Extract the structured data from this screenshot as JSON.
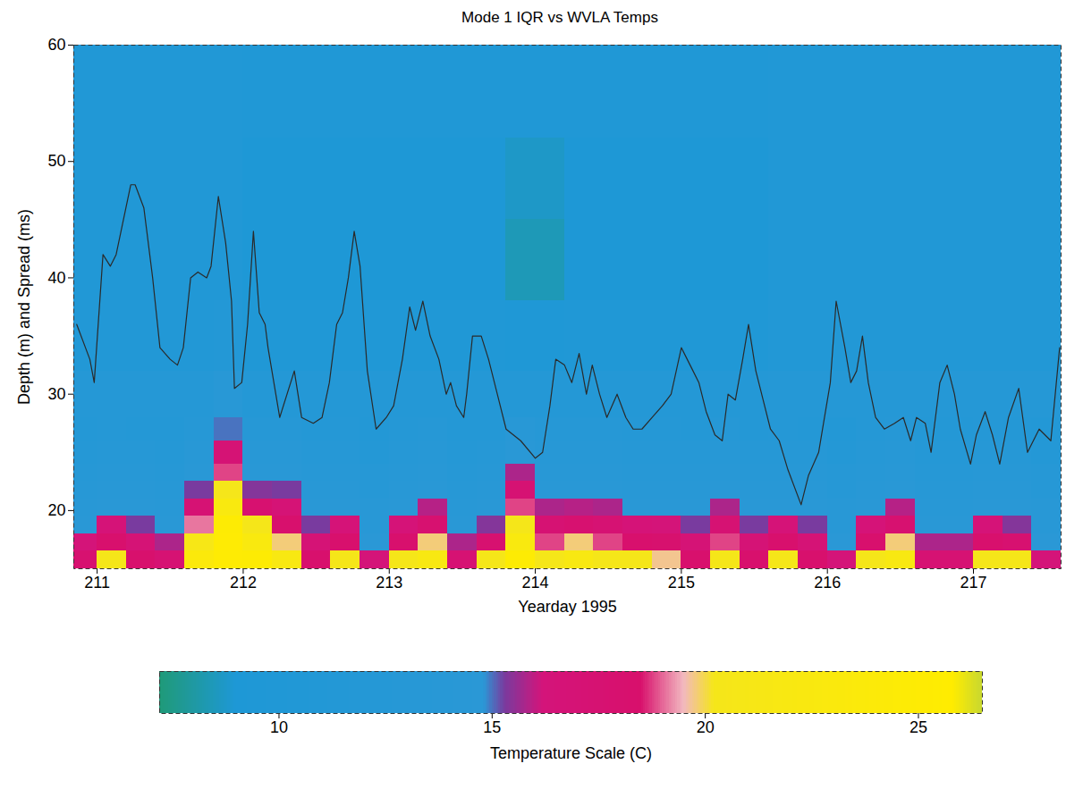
{
  "chart_data": {
    "type": "heatmap",
    "title": "Mode 1 IQR vs WVLA Temps",
    "x_label": "Yearday 1995",
    "y_label": "Depth (m) and Spread (ms)",
    "xlim": [
      210.84,
      217.6
    ],
    "xticks": [
      211,
      212,
      213,
      214,
      215,
      216,
      217
    ],
    "ylim": [
      15,
      60
    ],
    "yticks": [
      20,
      30,
      40,
      50,
      60
    ],
    "heatmap": {
      "x_edges": [
        210.8,
        211.0,
        211.2,
        211.4,
        211.6,
        211.8,
        212.0,
        212.2,
        212.4,
        212.6,
        212.8,
        213.0,
        213.2,
        213.4,
        213.6,
        213.8,
        214.0,
        214.2,
        214.4,
        214.6,
        214.8,
        215.0,
        215.2,
        215.4,
        215.6,
        215.8,
        216.0,
        216.2,
        216.4,
        216.6,
        216.8,
        217.0,
        217.2,
        217.4,
        217.6
      ],
      "y_edges": [
        15,
        16.5,
        18,
        19.5,
        21,
        22.5,
        24,
        26,
        28,
        32,
        38,
        45,
        52,
        60
      ],
      "values": [
        [
          17.8,
          16.3,
          14.4,
          14.0,
          13.5,
          13.1,
          12.6,
          12.0,
          12.2,
          11,
          10.5,
          10.5,
          10.5
        ],
        [
          20.4,
          18.4,
          16.6,
          14.4,
          14.0,
          13.5,
          13.0,
          12.4,
          12.2,
          11,
          10.5,
          10.5,
          10.5
        ],
        [
          18.3,
          16.8,
          15.3,
          14.1,
          13.7,
          13.2,
          12.7,
          12.1,
          12.2,
          11,
          10.5,
          10.5,
          10.5
        ],
        [
          17.3,
          15.8,
          14.3,
          13.8,
          13.4,
          12.9,
          12.4,
          11.8,
          12.2,
          11,
          10.5,
          10.5,
          10.5
        ],
        [
          23.4,
          21.1,
          19.1,
          17.2,
          15.3,
          14.1,
          13.6,
          13.0,
          12.2,
          11,
          10.5,
          10.5,
          10.5
        ],
        [
          25,
          25,
          24.9,
          22.6,
          20.3,
          18.8,
          17.0,
          15.0,
          13.6,
          11.5,
          10.5,
          10.5,
          10.5
        ],
        [
          24.9,
          22.6,
          20.4,
          17.9,
          15.4,
          14.1,
          13.6,
          13.0,
          12,
          10,
          9,
          9.2,
          10
        ],
        [
          21.9,
          19.8,
          18.3,
          16.8,
          15.3,
          14.1,
          13.6,
          13.0,
          12,
          10,
          9,
          9.2,
          10
        ],
        [
          18.3,
          16.8,
          15.3,
          14.1,
          13.7,
          13.2,
          12.7,
          12.1,
          12,
          10,
          9,
          9.2,
          10
        ],
        [
          20.4,
          18.4,
          16.6,
          14.4,
          14.0,
          13.5,
          13.0,
          12.4,
          12,
          10,
          9,
          9.2,
          10
        ],
        [
          16.3,
          14.6,
          14.0,
          13.6,
          13.1,
          12.7,
          12.1,
          11.5,
          12,
          10,
          9,
          9.2,
          10
        ],
        [
          20.4,
          18.4,
          16.6,
          14.4,
          14.0,
          13.5,
          13.0,
          12.4,
          12,
          10,
          9,
          9.2,
          10
        ],
        [
          21.9,
          19.8,
          17.8,
          15.9,
          14.3,
          13.8,
          13.3,
          12.7,
          12,
          10,
          9,
          9.2,
          10
        ],
        [
          17.3,
          15.8,
          14.3,
          13.8,
          13.4,
          12.9,
          12.4,
          11.8,
          12,
          10,
          9,
          9.2,
          10
        ],
        [
          20.4,
          17.9,
          15.4,
          14.1,
          13.7,
          13.2,
          12.7,
          12.1,
          12,
          10,
          9,
          9.2,
          10
        ],
        [
          24.9,
          22.6,
          20.4,
          18.8,
          17.3,
          15.8,
          14.2,
          13.6,
          11.8,
          9.6,
          8.4,
          8.7,
          9.8
        ],
        [
          20.4,
          18.8,
          17.3,
          15.8,
          14.3,
          13.8,
          13.3,
          12.7,
          11.8,
          9.6,
          8.4,
          8.7,
          9.8
        ],
        [
          21.9,
          19.8,
          17.8,
          15.9,
          14.3,
          13.8,
          13.3,
          12.7,
          12,
          10,
          9,
          9.2,
          10
        ],
        [
          20.4,
          18.8,
          17.3,
          15.8,
          14.3,
          13.8,
          13.3,
          12.7,
          12,
          10,
          9,
          9.2,
          10
        ],
        [
          20.4,
          18.4,
          16.6,
          14.4,
          14.0,
          13.5,
          13.0,
          12.4,
          12,
          10,
          9,
          9.2,
          10
        ],
        [
          19.7,
          18.1,
          16.4,
          14.4,
          14.0,
          13.5,
          13.0,
          12.4,
          12,
          10,
          9,
          9.2,
          10
        ],
        [
          18.3,
          16.8,
          15.3,
          14.1,
          13.7,
          13.2,
          12.7,
          12.1,
          12,
          10,
          9,
          9.2,
          10
        ],
        [
          20.4,
          18.8,
          17.3,
          15.8,
          14.3,
          13.8,
          13.3,
          12.7,
          12,
          10,
          9,
          9.2,
          10
        ],
        [
          18.3,
          16.8,
          15.3,
          14.1,
          13.7,
          13.2,
          12.7,
          12.1,
          12,
          10,
          9,
          9.2,
          10
        ],
        [
          20.4,
          18.4,
          16.6,
          14.4,
          14.0,
          13.5,
          13.0,
          12.4,
          12.2,
          11,
          10.5,
          10.5,
          10.5
        ],
        [
          18.3,
          16.8,
          15.3,
          14.1,
          13.7,
          13.2,
          12.7,
          12.1,
          12.2,
          11,
          10.5,
          10.5,
          10.5
        ],
        [
          16.3,
          14.6,
          14.0,
          13.6,
          13.1,
          12.7,
          12.1,
          11.5,
          12.2,
          11,
          10.5,
          10.5,
          10.5
        ],
        [
          20.4,
          18.4,
          16.6,
          14.4,
          14.0,
          13.5,
          13.0,
          12.4,
          12.2,
          11,
          10.5,
          10.5,
          10.5
        ],
        [
          21.9,
          19.8,
          17.8,
          15.9,
          14.3,
          13.8,
          13.3,
          12.7,
          12.2,
          11,
          10.5,
          10.5,
          10.5
        ],
        [
          17.3,
          15.8,
          14.3,
          13.8,
          13.4,
          12.9,
          12.4,
          11.8,
          12.2,
          11,
          10.5,
          10.5,
          10.5
        ],
        [
          17.3,
          15.8,
          14.3,
          13.8,
          13.4,
          12.9,
          12.4,
          11.8,
          12.2,
          11,
          10.5,
          10.5,
          10.5
        ],
        [
          20.4,
          18.4,
          16.6,
          14.4,
          14.0,
          13.5,
          13.0,
          12.4,
          12.2,
          11,
          10.5,
          10.5,
          10.5
        ],
        [
          20.4,
          17.9,
          15.4,
          14.1,
          13.7,
          13.2,
          12.7,
          12.1,
          12.2,
          11,
          10.5,
          10.5,
          10.5
        ],
        [
          16.3,
          14.6,
          14.0,
          13.6,
          13.1,
          12.7,
          12.1,
          11.5,
          12.2,
          11,
          10.5,
          10.5,
          10.5
        ]
      ]
    },
    "colorbar": {
      "label": "Temperature Scale (C)",
      "range": [
        7.2,
        26.5
      ],
      "ticks": [
        10,
        15,
        20,
        25
      ],
      "colors": [
        "#1f9a78",
        "#1e98d6",
        "#2a98d6",
        "#7a3a9e",
        "#d4147a",
        "#d8106c",
        "#f2b8c0",
        "#f5e61a",
        "#ffec00",
        "#c8d830"
      ]
    },
    "series": [
      {
        "type": "line",
        "color": "#2a2a2a",
        "x": [
          210.86,
          210.95,
          210.98,
          211.04,
          211.09,
          211.13,
          211.23,
          211.26,
          211.32,
          211.38,
          211.43,
          211.5,
          211.55,
          211.59,
          211.64,
          211.69,
          211.75,
          211.78,
          211.83,
          211.88,
          211.92,
          211.94,
          211.99,
          212.03,
          212.07,
          212.11,
          212.15,
          212.17,
          212.25,
          212.35,
          212.4,
          212.48,
          212.54,
          212.59,
          212.64,
          212.68,
          212.72,
          212.76,
          212.8,
          212.85,
          212.91,
          212.98,
          213.03,
          213.09,
          213.14,
          213.18,
          213.23,
          213.28,
          213.34,
          213.39,
          213.42,
          213.46,
          213.51,
          213.53,
          213.57,
          213.63,
          213.68,
          213.74,
          213.8,
          213.9,
          214.0,
          214.05,
          214.1,
          214.14,
          214.2,
          214.25,
          214.3,
          214.35,
          214.39,
          214.44,
          214.49,
          214.56,
          214.62,
          214.67,
          214.73,
          214.8,
          214.87,
          214.93,
          215.0,
          215.08,
          215.12,
          215.17,
          215.23,
          215.28,
          215.32,
          215.37,
          215.42,
          215.46,
          215.51,
          215.57,
          215.61,
          215.67,
          215.73,
          215.82,
          215.87,
          215.94,
          215.98,
          216.02,
          216.06,
          216.12,
          216.16,
          216.2,
          216.24,
          216.28,
          216.33,
          216.39,
          216.46,
          216.52,
          216.57,
          216.61,
          216.67,
          216.71,
          216.77,
          216.82,
          216.87,
          216.91,
          216.98,
          217.02,
          217.08,
          217.13,
          217.18,
          217.24,
          217.31,
          217.37,
          217.45,
          217.53,
          217.59
        ],
        "values": [
          36,
          33,
          31,
          42,
          41,
          42,
          48,
          48,
          46,
          40,
          34,
          33,
          32.5,
          34,
          40,
          40.5,
          40,
          41,
          47,
          43,
          38,
          30.5,
          31,
          36,
          44,
          37,
          36,
          34,
          28,
          32,
          28,
          27.5,
          28,
          31,
          36,
          37,
          40,
          44,
          41,
          32,
          27,
          28,
          29,
          33,
          37.5,
          35.5,
          38,
          35,
          33,
          30,
          31,
          29,
          28,
          30,
          35,
          35,
          33,
          30,
          27,
          26,
          24.5,
          25,
          29,
          33,
          32.5,
          31,
          33.5,
          30,
          32.5,
          30,
          28,
          30,
          28,
          27,
          27,
          28,
          29,
          30,
          34,
          32,
          31,
          28.5,
          26.5,
          26,
          30,
          29.5,
          33,
          36,
          32,
          29,
          27,
          26,
          23.5,
          20.5,
          23,
          25,
          28,
          31,
          38,
          34,
          31,
          32,
          35,
          31,
          28,
          27,
          27.5,
          28,
          26,
          28,
          27.5,
          25,
          31,
          32.5,
          30,
          27,
          24,
          26.5,
          28.5,
          26.5,
          24,
          28,
          30.5,
          25,
          27,
          26,
          34
        ]
      }
    ]
  }
}
